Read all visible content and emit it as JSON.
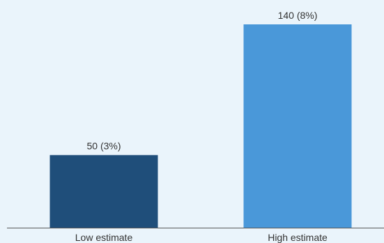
{
  "chart_data": {
    "type": "bar",
    "categories": [
      "Low estimate",
      "High estimate"
    ],
    "values": [
      50,
      140
    ],
    "data_labels": [
      "50 (3%)",
      "140 (8%)"
    ],
    "colors": [
      "#1f4e7a",
      "#4a98d9"
    ],
    "title": "",
    "xlabel": "",
    "ylabel": "",
    "ylim": [
      0,
      150
    ],
    "grid": false
  }
}
